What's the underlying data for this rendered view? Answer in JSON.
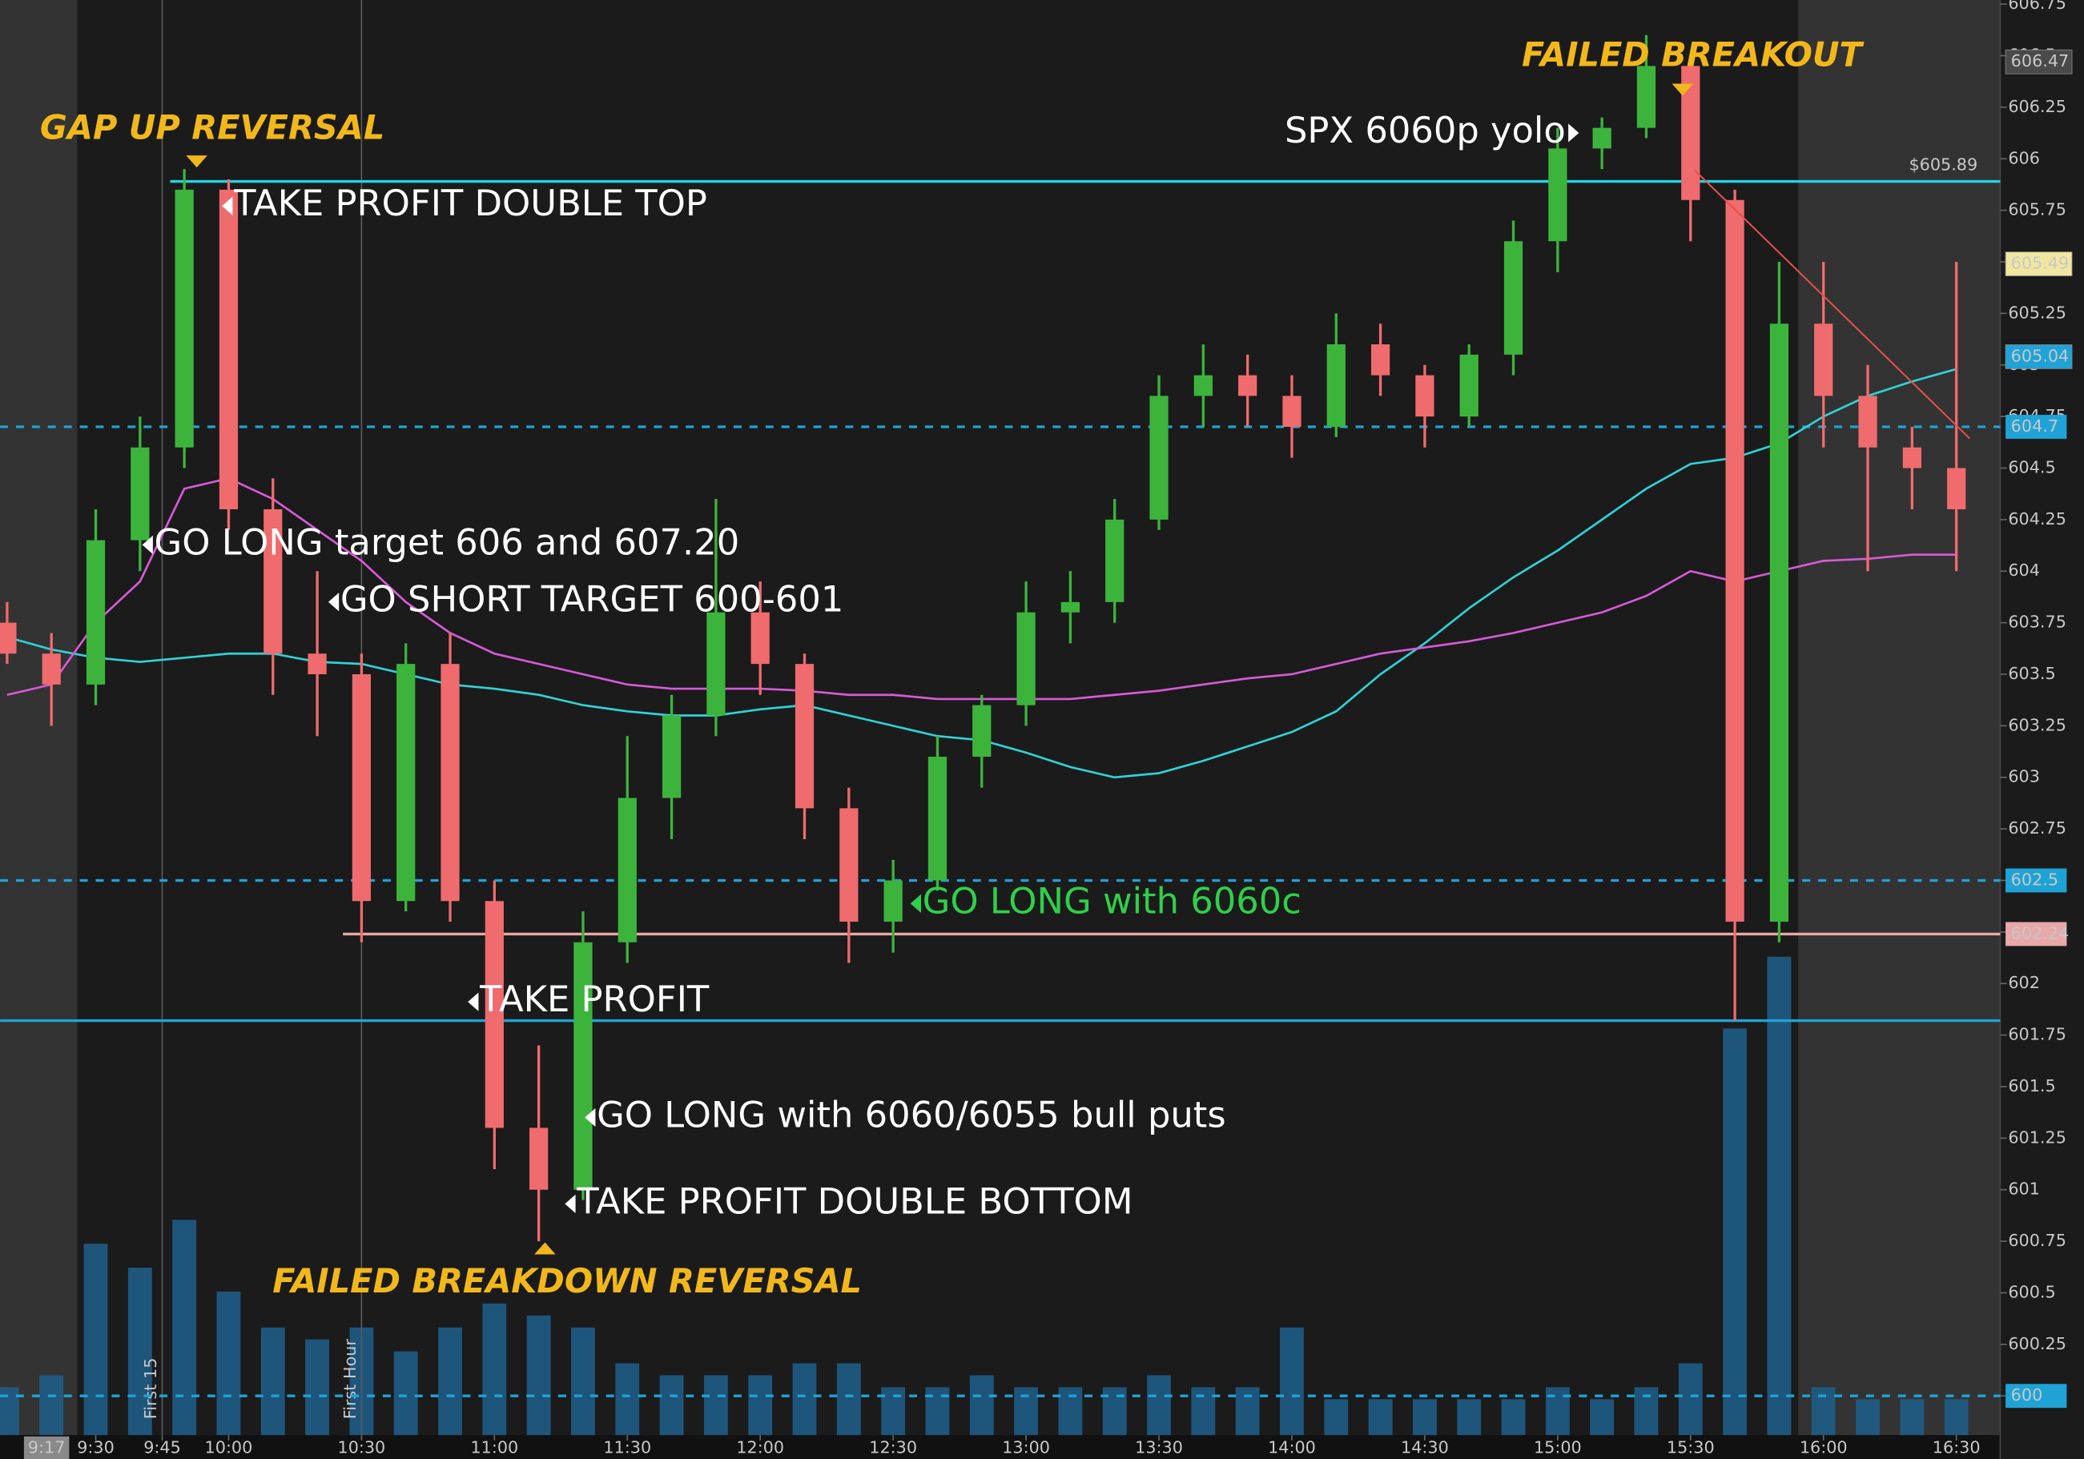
{
  "chart_data": {
    "type": "candlestick",
    "x": [
      550,
      560,
      570,
      580,
      590,
      600,
      610,
      620,
      630,
      640,
      650,
      660,
      670,
      680,
      690,
      700,
      710,
      720,
      730,
      740,
      750,
      760,
      770,
      780,
      790,
      800,
      810,
      820,
      830,
      840,
      850,
      860,
      870,
      880,
      890,
      900,
      910,
      920,
      930,
      940,
      950,
      960,
      970,
      980,
      990
    ],
    "open": [
      603.75,
      603.6,
      603.45,
      604.15,
      604.6,
      605.85,
      604.3,
      603.6,
      603.5,
      602.4,
      603.55,
      602.4,
      601.3,
      601.0,
      602.2,
      602.9,
      603.3,
      603.8,
      603.55,
      602.85,
      602.3,
      602.5,
      603.1,
      603.35,
      603.8,
      603.85,
      604.25,
      604.85,
      604.95,
      604.85,
      604.7,
      605.1,
      604.95,
      604.75,
      605.05,
      605.6,
      606.05,
      606.15,
      606.45,
      605.8,
      602.3,
      605.2,
      604.85,
      604.6,
      604.5
    ],
    "high": [
      603.85,
      603.7,
      604.3,
      604.75,
      605.95,
      605.9,
      604.45,
      604.0,
      603.6,
      603.65,
      603.7,
      602.5,
      601.7,
      602.35,
      603.2,
      603.4,
      604.35,
      603.95,
      603.6,
      602.95,
      602.6,
      603.2,
      603.4,
      603.95,
      604.0,
      604.35,
      604.95,
      605.1,
      605.05,
      604.95,
      605.25,
      605.2,
      605.0,
      605.1,
      605.7,
      606.15,
      606.2,
      606.6,
      606.5,
      605.85,
      605.5,
      605.5,
      605.0,
      604.7,
      605.5
    ],
    "low": [
      603.55,
      603.25,
      603.35,
      604.0,
      604.5,
      604.2,
      603.4,
      603.2,
      602.2,
      602.35,
      602.3,
      601.1,
      600.75,
      600.95,
      602.1,
      602.7,
      603.2,
      603.4,
      602.7,
      602.1,
      602.15,
      602.45,
      602.95,
      603.25,
      603.65,
      603.75,
      604.2,
      604.7,
      604.7,
      604.55,
      604.65,
      604.85,
      604.6,
      604.7,
      604.95,
      605.45,
      605.95,
      606.1,
      605.6,
      601.82,
      602.2,
      604.6,
      604.0,
      604.3,
      604.0
    ],
    "close": [
      603.6,
      603.45,
      604.15,
      604.6,
      605.85,
      604.3,
      603.6,
      603.5,
      602.4,
      603.55,
      602.4,
      601.3,
      601.0,
      602.2,
      602.9,
      603.3,
      603.8,
      603.55,
      602.85,
      602.3,
      602.5,
      603.1,
      603.35,
      603.8,
      603.85,
      604.25,
      604.85,
      604.95,
      604.85,
      604.7,
      605.1,
      604.95,
      604.75,
      605.05,
      605.6,
      606.05,
      606.15,
      606.45,
      605.8,
      602.3,
      605.2,
      604.85,
      604.6,
      604.5,
      604.3
    ],
    "volume": [
      20,
      25,
      80,
      70,
      90,
      60,
      45,
      40,
      45,
      35,
      45,
      55,
      50,
      45,
      30,
      25,
      25,
      25,
      30,
      30,
      20,
      20,
      25,
      20,
      20,
      20,
      25,
      20,
      20,
      45,
      15,
      15,
      15,
      15,
      15,
      20,
      15,
      20,
      30,
      170,
      200,
      20,
      15,
      15,
      15
    ],
    "up_color": "#3cb43c",
    "down_color": "#ef6b6e",
    "volume_color": "#1f5f8c",
    "series": [
      {
        "color": "#2fd3d8",
        "values": [
          603.68,
          603.62,
          603.58,
          603.56,
          603.58,
          603.6,
          603.6,
          603.56,
          603.55,
          603.5,
          603.45,
          603.43,
          603.4,
          603.35,
          603.32,
          603.3,
          603.3,
          603.33,
          603.35,
          603.3,
          603.25,
          603.2,
          603.18,
          603.12,
          603.05,
          603.0,
          603.02,
          603.08,
          603.15,
          603.22,
          603.32,
          603.5,
          603.65,
          603.82,
          603.97,
          604.1,
          604.25,
          604.4,
          604.52,
          604.55,
          604.62,
          604.75,
          604.85,
          604.92,
          604.98
        ]
      },
      {
        "color": "#d85ad8",
        "values": [
          603.4,
          603.45,
          603.75,
          603.95,
          604.4,
          604.45,
          604.35,
          604.2,
          604.05,
          603.85,
          603.7,
          603.6,
          603.55,
          603.5,
          603.45,
          603.43,
          603.43,
          603.43,
          603.42,
          603.4,
          603.4,
          603.38,
          603.38,
          603.38,
          603.38,
          603.4,
          603.42,
          603.45,
          603.48,
          603.5,
          603.55,
          603.6,
          603.63,
          603.66,
          603.7,
          603.75,
          603.8,
          603.88,
          604.0,
          603.95,
          604.0,
          604.05,
          604.06,
          604.08,
          604.08
        ]
      }
    ],
    "xlim": [
      548.4,
      999.9
    ],
    "ylim": [
      599.81,
      606.77
    ],
    "xticks": [
      {
        "value": 570,
        "label": "9:30"
      },
      {
        "value": 585,
        "label": "9:45"
      },
      {
        "value": 600,
        "label": "10:00"
      },
      {
        "value": 630,
        "label": "10:30"
      },
      {
        "value": 660,
        "label": "11:00"
      },
      {
        "value": 690,
        "label": "11:30"
      },
      {
        "value": 720,
        "label": "12:00"
      },
      {
        "value": 750,
        "label": "12:30"
      },
      {
        "value": 780,
        "label": "13:00"
      },
      {
        "value": 810,
        "label": "13:30"
      },
      {
        "value": 840,
        "label": "14:00"
      },
      {
        "value": 870,
        "label": "14:30"
      },
      {
        "value": 900,
        "label": "15:00"
      },
      {
        "value": 930,
        "label": "15:30"
      },
      {
        "value": 960,
        "label": "16:00"
      },
      {
        "value": 990,
        "label": "16:30"
      }
    ],
    "yticks": [
      600,
      600.25,
      600.5,
      600.75,
      601,
      601.25,
      601.5,
      601.75,
      602,
      602.25,
      602.5,
      602.75,
      603,
      603.25,
      603.5,
      603.75,
      604,
      604.25,
      604.5,
      604.75,
      605,
      605.25,
      605.5,
      605.75,
      606,
      606.25,
      606.5,
      606.75
    ],
    "cursor_time": "9:17",
    "session_markers": [
      {
        "value": 585,
        "label": "First 15"
      },
      {
        "value": 630,
        "label": "First Hour"
      }
    ],
    "levels": [
      {
        "value": 605.89,
        "label": "$605.89",
        "color": "#22d3e6",
        "dash": false
      },
      {
        "value": 604.7,
        "color": "#1fa3d6",
        "dash": true
      },
      {
        "value": 602.5,
        "color": "#1fa3d6",
        "dash": true
      },
      {
        "value": 602.24,
        "color": "#e8a8a8",
        "dash": false
      },
      {
        "value": 601.82,
        "color": "#1fa3d6",
        "dash": false
      },
      {
        "value": 600,
        "color": "#1fa3d6",
        "dash": true
      }
    ],
    "price_markers": [
      {
        "value": 606.47,
        "color": "#4a4a4a"
      },
      {
        "value": 605.49,
        "color": "#f1e6a0"
      },
      {
        "value": 605.04,
        "color": "#1fa3d6"
      }
    ],
    "annotations": [
      {
        "text": "GAP UP REVERSAL",
        "color": "#f2b71a"
      },
      {
        "text": "TAKE PROFIT DOUBLE TOP",
        "color": "#ffffff"
      },
      {
        "text": "GO LONG target 606 and 607.20",
        "color": "#ffffff"
      },
      {
        "text": "GO SHORT TARGET 600-601",
        "color": "#ffffff"
      },
      {
        "text": "TAKE PROFIT",
        "color": "#ffffff"
      },
      {
        "text": "GO LONG with 6060/6055 bull puts",
        "color": "#ffffff"
      },
      {
        "text": "TAKE PROFIT DOUBLE BOTTOM",
        "color": "#ffffff"
      },
      {
        "text": "FAILED BREAKDOWN REVERSAL",
        "color": "#f2b71a"
      },
      {
        "text": "GO LONG with 6060c",
        "color": "#2fd04a"
      },
      {
        "text": "SPX 6060p yolo",
        "color": "#ffffff"
      },
      {
        "text": "FAILED BREAKOUT",
        "color": "#f2b71a"
      }
    ]
  }
}
